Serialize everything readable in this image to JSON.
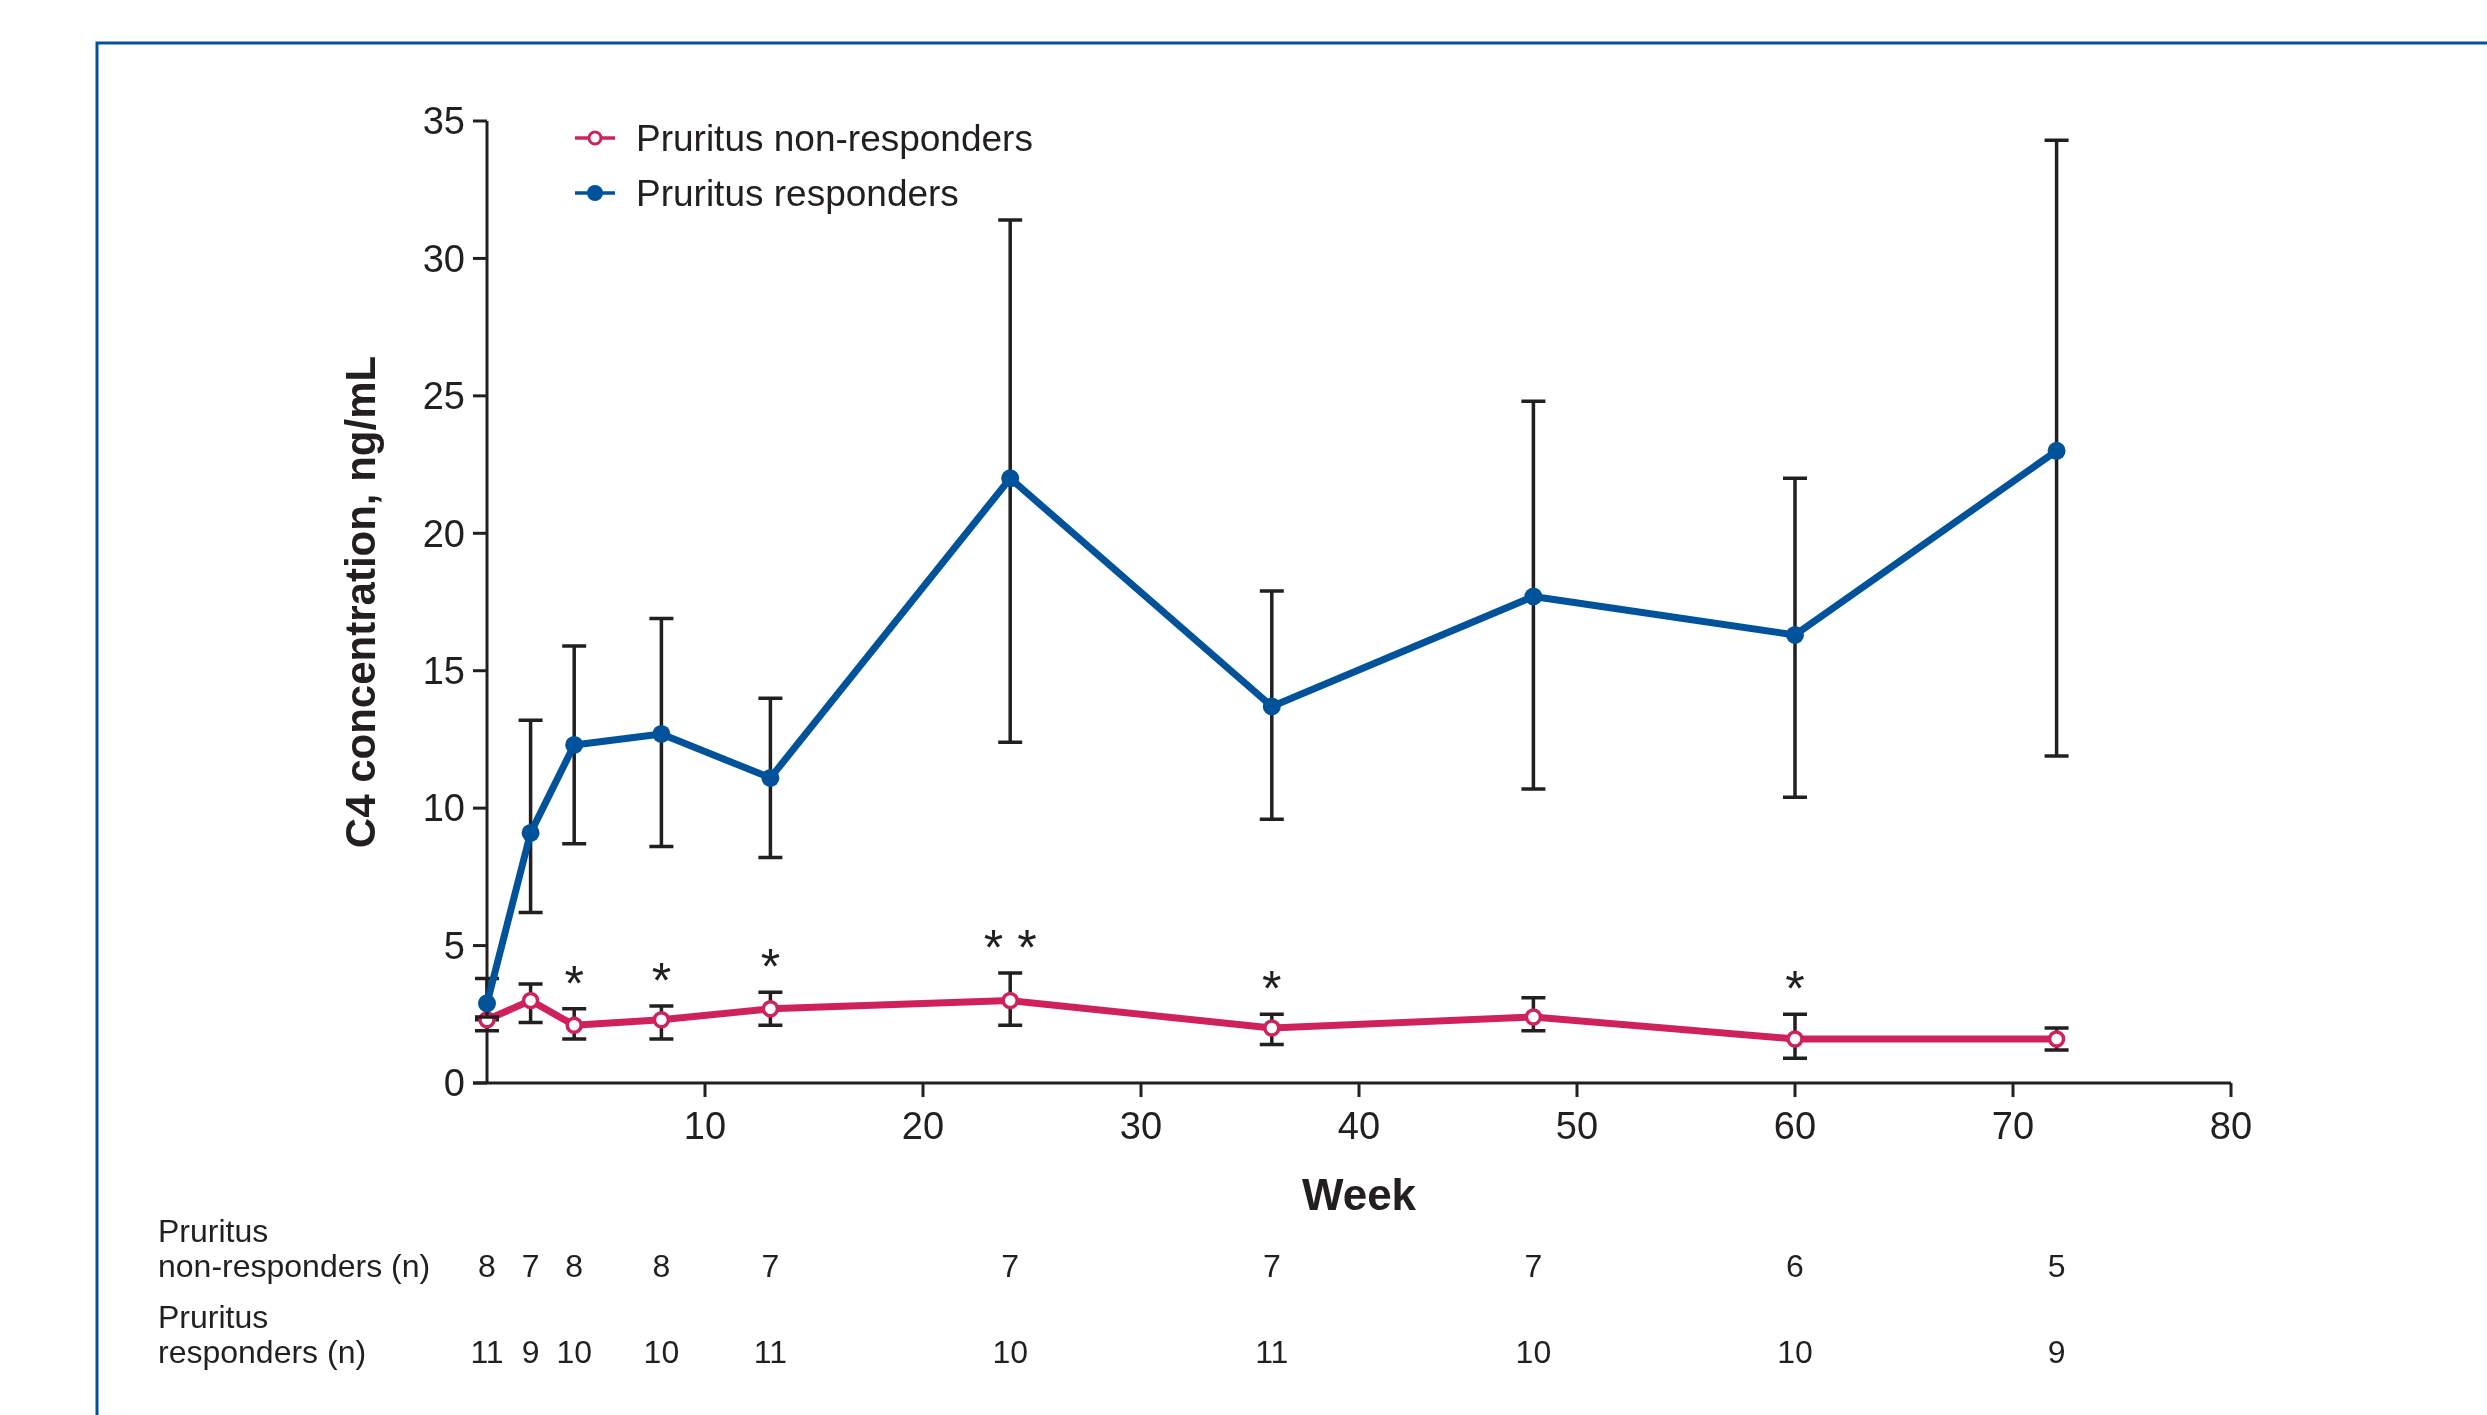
{
  "chart_data": {
    "type": "line",
    "xlabel": "Week",
    "ylabel": "C4 concentration, ng/mL",
    "xlim": [
      0,
      80
    ],
    "xticks": [
      10,
      20,
      30,
      40,
      50,
      60,
      70,
      80
    ],
    "ylim": [
      0,
      35
    ],
    "yticks": [
      0,
      5,
      10,
      15,
      20,
      25,
      30,
      35
    ],
    "grid": false,
    "legend": "top left",
    "marker": "circle",
    "line_style": "solid",
    "series": [
      {
        "name": "Pruritus non-responders",
        "color": "#d0215f",
        "x": [
          0,
          2,
          4,
          8,
          13,
          24,
          36,
          48,
          60,
          72
        ],
        "values": [
          2.3,
          3.0,
          2.1,
          2.3,
          2.7,
          3.0,
          2.0,
          2.4,
          1.6,
          1.6
        ],
        "errors": [
          [
            1.9,
            2.3
          ],
          [
            2.2,
            3.6
          ],
          [
            1.6,
            2.7
          ],
          [
            1.6,
            2.8
          ],
          [
            2.1,
            3.3
          ],
          [
            2.1,
            4.0
          ],
          [
            1.4,
            2.5
          ],
          [
            1.9,
            3.1
          ],
          [
            0.9,
            2.5
          ],
          [
            1.2,
            2.0
          ]
        ]
      },
      {
        "name": "Pruritus responders",
        "color": "#00529b",
        "x": [
          0,
          2,
          4,
          8,
          13,
          24,
          36,
          48,
          60,
          72
        ],
        "values": [
          2.9,
          9.1,
          12.3,
          12.7,
          11.1,
          22.0,
          13.7,
          17.7,
          16.3,
          23.0
        ],
        "errors": [
          [
            2.4,
            3.8
          ],
          [
            6.2,
            13.2
          ],
          [
            8.7,
            15.9
          ],
          [
            8.6,
            16.9
          ],
          [
            8.2,
            14.0
          ],
          [
            12.4,
            31.4
          ],
          [
            9.6,
            17.9
          ],
          [
            10.7,
            24.8
          ],
          [
            10.4,
            22.0
          ],
          [
            11.9,
            34.3
          ]
        ]
      }
    ],
    "annotations": [
      {
        "text": "*",
        "x": 4,
        "y": 2.7
      },
      {
        "text": "*",
        "x": 8,
        "y": 2.8
      },
      {
        "text": "*",
        "x": 13,
        "y": 3.3
      },
      {
        "text": "* *",
        "x": 24,
        "y": 4.0
      },
      {
        "text": "*",
        "x": 36,
        "y": 2.5
      },
      {
        "text": "*",
        "x": 60,
        "y": 2.5
      },
      "Pruritus\nnon-responders (n)",
      "8",
      "7",
      "8",
      "8",
      "7",
      "7",
      "7",
      "7",
      "6",
      "5",
      "Pruritus\nresponders (n)",
      "11",
      "9",
      "10",
      "10",
      "11",
      "10",
      "11",
      "10",
      "10",
      "9"
    ]
  }
}
